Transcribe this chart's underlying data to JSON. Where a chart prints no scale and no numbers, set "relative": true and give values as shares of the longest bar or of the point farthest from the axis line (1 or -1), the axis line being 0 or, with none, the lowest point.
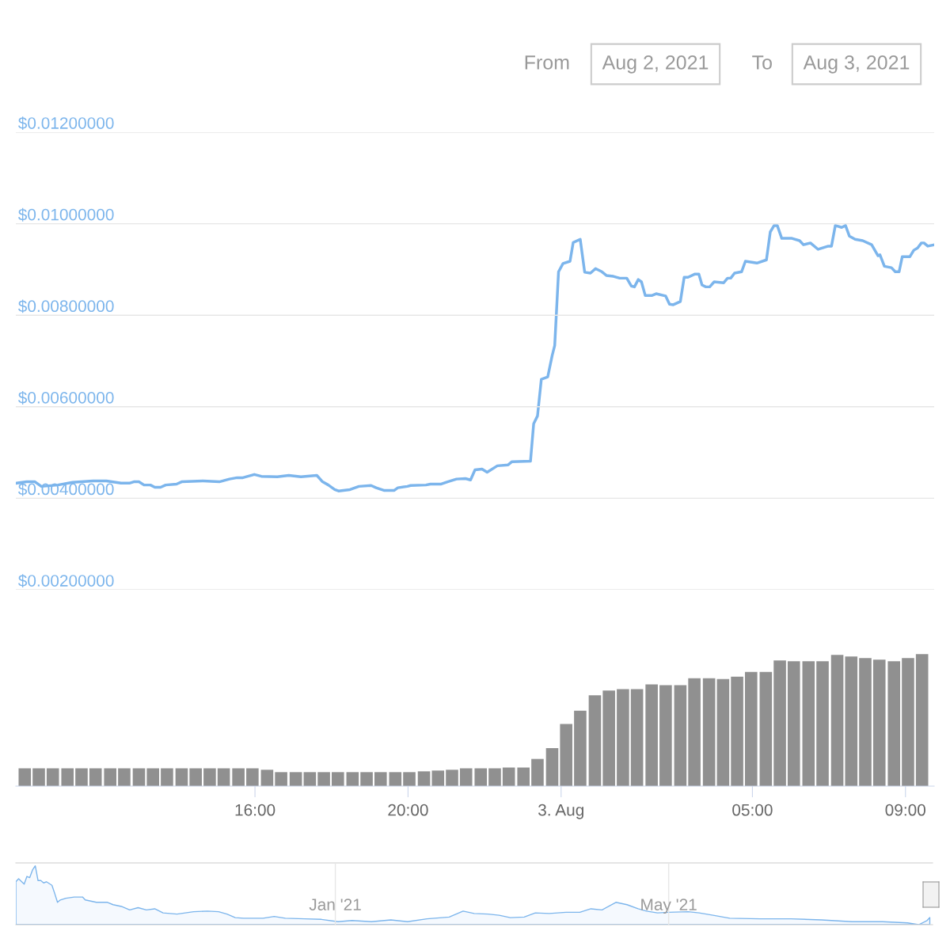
{
  "chart_data": [
    {
      "type": "line",
      "annotations": [
        "From",
        "Aug 2, 2021",
        "To",
        "Aug 3, 2021"
      ],
      "xlim": [
        "2021-08-02T09:45",
        "2021-08-03T09:45"
      ],
      "ylim": [
        0.002,
        0.012
      ],
      "yticks": [
        {
          "value": 0.002,
          "label": "$0.00200000"
        },
        {
          "value": 0.004,
          "label": "$0.00400000"
        },
        {
          "value": 0.006,
          "label": "$0.00600000"
        },
        {
          "value": 0.008,
          "label": "$0.00800000"
        },
        {
          "value": 0.01,
          "label": "$0.01000000"
        },
        {
          "value": 0.012,
          "label": "$0.01200000"
        }
      ],
      "tick_labels": "y",
      "grid": "y",
      "legend": false,
      "marker": "none",
      "line_style": "solid",
      "series": [
        {
          "color": "#7cb5ec",
          "x": [
            "2021-08-02T09:46",
            "2021-08-02T10:02",
            "2021-08-02T10:15",
            "2021-08-02T10:25",
            "2021-08-02T10:51",
            "2021-08-02T11:14",
            "2021-08-02T11:46",
            "2021-08-02T12:07",
            "2021-08-02T12:30",
            "2021-08-02T12:43",
            "2021-08-02T12:50",
            "2021-08-02T12:58",
            "2021-08-02T13:06",
            "2021-08-02T13:16",
            "2021-08-02T13:23",
            "2021-08-02T13:32",
            "2021-08-02T13:40",
            "2021-08-02T13:57",
            "2021-08-02T14:05",
            "2021-08-02T14:39",
            "2021-08-02T15:04",
            "2021-08-02T15:20",
            "2021-08-02T15:32",
            "2021-08-02T15:41",
            "2021-08-02T15:59",
            "2021-08-02T16:10",
            "2021-08-02T16:35",
            "2021-08-02T16:53",
            "2021-08-02T17:12",
            "2021-08-02T17:37",
            "2021-08-02T17:46",
            "2021-08-02T17:55",
            "2021-08-02T18:05",
            "2021-08-02T18:11",
            "2021-08-02T18:29",
            "2021-08-02T18:43",
            "2021-08-02T19:02",
            "2021-08-02T19:10",
            "2021-08-02T19:23",
            "2021-08-02T19:38",
            "2021-08-02T19:44",
            "2021-08-02T19:59",
            "2021-08-02T20:04",
            "2021-08-02T20:28",
            "2021-08-02T20:35",
            "2021-08-02T20:52",
            "2021-08-02T21:02",
            "2021-08-02T21:16",
            "2021-08-02T21:30",
            "2021-08-02T21:38",
            "2021-08-02T21:45",
            "2021-08-02T21:56",
            "2021-08-02T22:04",
            "2021-08-02T22:20",
            "2021-08-02T22:37",
            "2021-08-02T22:43",
            "2021-08-02T23:12",
            "2021-08-02T23:17",
            "2021-08-02T23:23",
            "2021-08-02T23:29",
            "2021-08-02T23:39",
            "2021-08-02T23:46",
            "2021-08-02T23:50",
            "2021-08-02T23:56",
            "2021-08-03T00:03",
            "2021-08-03T00:14",
            "2021-08-03T00:19",
            "2021-08-03T00:30",
            "2021-08-03T00:37",
            "2021-08-03T00:46",
            "2021-08-03T00:54",
            "2021-08-03T01:04",
            "2021-08-03T01:11",
            "2021-08-03T01:22",
            "2021-08-03T01:32",
            "2021-08-03T01:43",
            "2021-08-03T01:50",
            "2021-08-03T01:55",
            "2021-08-03T02:01",
            "2021-08-03T02:06",
            "2021-08-03T02:12",
            "2021-08-03T02:22",
            "2021-08-03T02:29",
            "2021-08-03T02:44",
            "2021-08-03T02:50",
            "2021-08-03T02:56",
            "2021-08-03T03:07",
            "2021-08-03T03:13",
            "2021-08-03T03:19",
            "2021-08-03T03:30",
            "2021-08-03T03:36",
            "2021-08-03T03:41",
            "2021-08-03T03:47",
            "2021-08-03T03:53",
            "2021-08-03T04:00",
            "2021-08-03T04:15",
            "2021-08-03T04:21",
            "2021-08-03T04:26",
            "2021-08-03T04:32",
            "2021-08-03T04:43",
            "2021-08-03T04:49",
            "2021-08-03T05:07",
            "2021-08-03T05:22",
            "2021-08-03T05:28",
            "2021-08-03T05:34",
            "2021-08-03T05:39",
            "2021-08-03T05:46",
            "2021-08-03T06:02",
            "2021-08-03T06:14",
            "2021-08-03T06:20",
            "2021-08-03T06:31",
            "2021-08-03T06:43",
            "2021-08-03T06:59",
            "2021-08-03T07:04",
            "2021-08-03T07:10",
            "2021-08-03T07:20",
            "2021-08-03T07:26",
            "2021-08-03T07:32",
            "2021-08-03T07:41",
            "2021-08-03T07:53",
            "2021-08-03T08:07",
            "2021-08-03T08:17",
            "2021-08-03T08:20",
            "2021-08-03T08:27",
            "2021-08-03T08:38",
            "2021-08-03T08:44",
            "2021-08-03T08:50",
            "2021-08-03T08:55",
            "2021-08-03T09:07",
            "2021-08-03T09:13",
            "2021-08-03T09:19",
            "2021-08-03T09:25",
            "2021-08-03T09:29",
            "2021-08-03T09:35",
            "2021-08-03T09:45"
          ],
          "values": [
            0.00433,
            0.00436,
            0.00436,
            0.00426,
            0.00429,
            0.00435,
            0.00438,
            0.00438,
            0.00433,
            0.00433,
            0.00436,
            0.00436,
            0.00429,
            0.00429,
            0.00424,
            0.00424,
            0.00429,
            0.00431,
            0.00436,
            0.00438,
            0.00436,
            0.00442,
            0.00445,
            0.00445,
            0.00452,
            0.00448,
            0.00447,
            0.0045,
            0.00447,
            0.0045,
            0.00436,
            0.00429,
            0.00419,
            0.00416,
            0.00419,
            0.00426,
            0.00428,
            0.00423,
            0.00417,
            0.00417,
            0.00423,
            0.00426,
            0.00428,
            0.00429,
            0.00431,
            0.00431,
            0.00436,
            0.00442,
            0.00443,
            0.0044,
            0.00462,
            0.00464,
            0.00457,
            0.00471,
            0.00473,
            0.0048,
            0.00481,
            0.00563,
            0.0058,
            0.0066,
            0.00665,
            0.00712,
            0.00734,
            0.00895,
            0.00913,
            0.00918,
            0.00959,
            0.00966,
            0.00894,
            0.00892,
            0.00902,
            0.00895,
            0.00887,
            0.00885,
            0.00881,
            0.00881,
            0.00864,
            0.00862,
            0.00878,
            0.00873,
            0.00843,
            0.00843,
            0.00847,
            0.00842,
            0.00824,
            0.00823,
            0.0083,
            0.00883,
            0.00883,
            0.0089,
            0.0089,
            0.00866,
            0.00862,
            0.00862,
            0.00873,
            0.00871,
            0.00881,
            0.00881,
            0.00892,
            0.00895,
            0.00918,
            0.00914,
            0.00921,
            0.00982,
            0.00996,
            0.00996,
            0.00968,
            0.00968,
            0.00963,
            0.00954,
            0.00958,
            0.00944,
            0.00951,
            0.00951,
            0.00996,
            0.00992,
            0.00996,
            0.00973,
            0.00966,
            0.00963,
            0.00954,
            0.0093,
            0.00932,
            0.00907,
            0.00904,
            0.00895,
            0.00895,
            0.00928,
            0.00928,
            0.00942,
            0.00947,
            0.00958,
            0.00958,
            0.00951,
            0.00954
          ]
        }
      ]
    },
    {
      "type": "bar",
      "relative": true,
      "xlim": [
        "2021-08-02T09:45",
        "2021-08-03T09:45"
      ],
      "xticks": [
        {
          "value": "2021-08-02T16:00",
          "label": "16:00"
        },
        {
          "value": "2021-08-02T20:00",
          "label": "20:00"
        },
        {
          "value": "2021-08-03T00:00",
          "label": "3. Aug"
        },
        {
          "value": "2021-08-03T05:00",
          "label": "05:00"
        },
        {
          "value": "2021-08-03T09:00",
          "label": "09:00"
        }
      ],
      "tick_labels": "x",
      "grid": false,
      "legend": false,
      "x": [
        "2021-08-02T09:59",
        "2021-08-02T10:21",
        "2021-08-02T10:43",
        "2021-08-02T11:06",
        "2021-08-02T11:28",
        "2021-08-02T11:50",
        "2021-08-02T12:13",
        "2021-08-02T12:35",
        "2021-08-02T12:58",
        "2021-08-02T13:20",
        "2021-08-02T13:42",
        "2021-08-02T14:05",
        "2021-08-02T14:27",
        "2021-08-02T14:49",
        "2021-08-02T15:11",
        "2021-08-02T15:34",
        "2021-08-02T15:56",
        "2021-08-02T16:19",
        "2021-08-02T16:41",
        "2021-08-02T17:04",
        "2021-08-02T17:26",
        "2021-08-02T17:48",
        "2021-08-02T18:10",
        "2021-08-02T18:33",
        "2021-08-02T18:55",
        "2021-08-02T19:17",
        "2021-08-02T19:40",
        "2021-08-02T20:02",
        "2021-08-02T20:25",
        "2021-08-02T20:47",
        "2021-08-02T21:09",
        "2021-08-02T21:31",
        "2021-08-02T21:54",
        "2021-08-02T22:16",
        "2021-08-02T22:38",
        "2021-08-02T23:01",
        "2021-08-02T23:23",
        "2021-08-02T23:46",
        "2021-08-03T00:08",
        "2021-08-03T00:30",
        "2021-08-03T00:53",
        "2021-08-03T01:15",
        "2021-08-03T01:37",
        "2021-08-03T01:59",
        "2021-08-03T02:22",
        "2021-08-03T02:44",
        "2021-08-03T03:07",
        "2021-08-03T03:29",
        "2021-08-03T03:52",
        "2021-08-03T04:14",
        "2021-08-03T04:36",
        "2021-08-03T04:58",
        "2021-08-03T05:21",
        "2021-08-03T05:43",
        "2021-08-03T06:05",
        "2021-08-03T06:28",
        "2021-08-03T06:50",
        "2021-08-03T07:13",
        "2021-08-03T07:35",
        "2021-08-03T07:57",
        "2021-08-03T08:19",
        "2021-08-03T08:42",
        "2021-08-03T09:04",
        "2021-08-03T09:26"
      ],
      "series": [
        {
          "color": "#909090",
          "values": [
            0.135,
            0.135,
            0.135,
            0.135,
            0.135,
            0.135,
            0.135,
            0.135,
            0.135,
            0.135,
            0.135,
            0.135,
            0.135,
            0.135,
            0.135,
            0.135,
            0.135,
            0.124,
            0.106,
            0.106,
            0.106,
            0.106,
            0.106,
            0.106,
            0.106,
            0.106,
            0.106,
            0.106,
            0.112,
            0.118,
            0.124,
            0.135,
            0.135,
            0.135,
            0.141,
            0.141,
            0.206,
            0.288,
            0.471,
            0.571,
            0.688,
            0.724,
            0.735,
            0.735,
            0.771,
            0.765,
            0.765,
            0.818,
            0.818,
            0.812,
            0.829,
            0.865,
            0.865,
            0.953,
            0.947,
            0.947,
            0.947,
            0.994,
            0.982,
            0.971,
            0.959,
            0.947,
            0.971,
            1
          ]
        }
      ]
    },
    {
      "type": "area",
      "relative": true,
      "xlim": [
        "2020-09-08",
        "2021-08-04"
      ],
      "xticks": [
        {
          "value": "2021-01-01",
          "label": "Jan '21"
        },
        {
          "value": "2021-05-01",
          "label": "May '21"
        }
      ],
      "tick_labels": "x",
      "grid": "x",
      "legend": false,
      "series": [
        {
          "color": "#7cb5ec",
          "x": [
            "2020-09-08",
            "2020-09-09",
            "2020-09-11",
            "2020-09-12",
            "2020-09-13",
            "2020-09-14",
            "2020-09-15",
            "2020-09-16",
            "2020-09-17",
            "2020-09-18",
            "2020-09-19",
            "2020-09-21",
            "2020-09-22",
            "2020-09-23",
            "2020-09-24",
            "2020-09-26",
            "2020-09-29",
            "2020-10-02",
            "2020-10-03",
            "2020-10-07",
            "2020-10-11",
            "2020-10-13",
            "2020-10-16",
            "2020-10-19",
            "2020-10-22",
            "2020-10-25",
            "2020-10-28",
            "2020-10-31",
            "2020-11-05",
            "2020-11-08",
            "2020-11-11",
            "2020-11-16",
            "2020-11-20",
            "2020-11-23",
            "2020-11-26",
            "2020-11-29",
            "2020-12-06",
            "2020-12-10",
            "2020-12-14",
            "2020-12-21",
            "2020-12-27",
            "2021-01-02",
            "2021-01-07",
            "2021-01-14",
            "2021-01-21",
            "2021-01-27",
            "2021-02-03",
            "2021-02-11",
            "2021-02-16",
            "2021-02-20",
            "2021-02-25",
            "2021-03-01",
            "2021-03-05",
            "2021-03-10",
            "2021-03-14",
            "2021-03-19",
            "2021-03-25",
            "2021-03-30",
            "2021-04-03",
            "2021-04-07",
            "2021-04-12",
            "2021-04-16",
            "2021-04-20",
            "2021-04-23",
            "2021-04-27",
            "2021-05-01",
            "2021-05-08",
            "2021-05-12",
            "2021-05-17",
            "2021-05-23",
            "2021-06-03",
            "2021-06-14",
            "2021-06-25",
            "2021-07-06",
            "2021-07-17",
            "2021-07-26",
            "2021-07-30",
            "2021-08-02",
            "2021-08-03"
          ],
          "values": [
            0.73,
            0.78,
            0.69,
            0.82,
            0.8,
            0.93,
            1,
            0.75,
            0.75,
            0.71,
            0.73,
            0.67,
            0.53,
            0.38,
            0.42,
            0.45,
            0.47,
            0.47,
            0.42,
            0.38,
            0.38,
            0.34,
            0.31,
            0.25,
            0.29,
            0.25,
            0.27,
            0.2,
            0.18,
            0.2,
            0.22,
            0.23,
            0.22,
            0.18,
            0.12,
            0.11,
            0.11,
            0.14,
            0.11,
            0.1,
            0.09,
            0.05,
            0.07,
            0.05,
            0.08,
            0.05,
            0.1,
            0.13,
            0.23,
            0.19,
            0.18,
            0.16,
            0.12,
            0.13,
            0.2,
            0.19,
            0.21,
            0.21,
            0.27,
            0.25,
            0.38,
            0.34,
            0.27,
            0.23,
            0.2,
            0.21,
            0.22,
            0.2,
            0.16,
            0.11,
            0.1,
            0.1,
            0.08,
            0.05,
            0.05,
            0.03,
            0,
            0.07,
            0.12
          ]
        }
      ]
    }
  ]
}
